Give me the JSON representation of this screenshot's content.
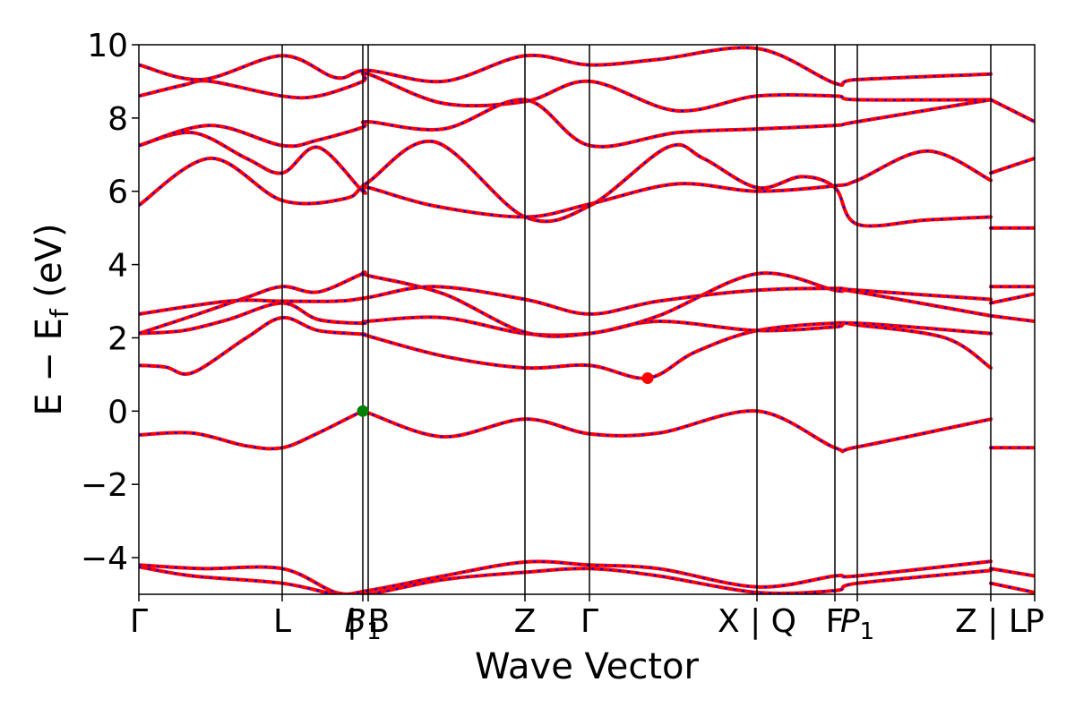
{
  "chart_data": {
    "type": "line",
    "title": "",
    "xlabel": "Wave Vector",
    "ylabel": "E − E_f (eV)",
    "ylabel_main": "E − E",
    "ylabel_sub": "f",
    "ylabel_tail": " (eV)",
    "ylim": [
      -5,
      10
    ],
    "xlim": [
      0,
      10
    ],
    "yticks": [
      -4,
      -2,
      0,
      2,
      4,
      6,
      8,
      10
    ],
    "ytick_labels": [
      "−4",
      "−2",
      "0",
      "2",
      "4",
      "6",
      "8",
      "10"
    ],
    "grid": false,
    "kpoints": [
      {
        "label": "Γ",
        "x": 0
      },
      {
        "label": "L",
        "x": 1.6
      },
      {
        "label": "B",
        "sub": "1",
        "italic": true,
        "x": 2.5
      },
      {
        "label": "B",
        "x": 2.56,
        "sep_before": true
      },
      {
        "label": "Z",
        "x": 4.31
      },
      {
        "label": "Γ",
        "x": 5.03
      },
      {
        "label": "X",
        "x": 6.9
      },
      {
        "label": "Q",
        "x": 6.9,
        "sep_before": true
      },
      {
        "label": "F",
        "x": 7.77
      },
      {
        "label": "P",
        "sub": "1",
        "italic": true,
        "x": 8.02
      },
      {
        "label": "Z",
        "x": 9.51
      },
      {
        "label": "L",
        "x": 9.51,
        "sep_before": true
      },
      {
        "label": "P",
        "x": 10.0
      }
    ],
    "band_styles": {
      "main": "#ff0000",
      "overlay": "#0000ff"
    },
    "markers": [
      {
        "name": "VBM",
        "x": 2.5,
        "y": 0.0,
        "color": "#008000"
      },
      {
        "name": "CBM",
        "x": 5.68,
        "y": 0.9,
        "color": "#ff0000"
      }
    ],
    "series": [
      {
        "x": [
          0,
          0.6,
          1.2,
          1.6,
          2.0,
          2.5,
          2.56,
          3.4,
          4.31,
          5.03,
          5.8,
          6.9,
          7.77,
          8.02,
          9.51
        ],
        "values": [
          -0.65,
          -0.6,
          -0.95,
          -1.0,
          -0.6,
          0.0,
          -0.05,
          -0.7,
          -0.22,
          -0.62,
          -0.6,
          0.0,
          -1.0,
          -0.98,
          -0.22
        ]
      },
      {
        "x": [
          0,
          0.3,
          0.6,
          1.2,
          1.6,
          2.0,
          2.5,
          2.56,
          3.4,
          4.31,
          5.03,
          5.68,
          6.2,
          6.9,
          7.77,
          8.02,
          9.0,
          9.51
        ],
        "values": [
          1.25,
          1.2,
          1.05,
          2.0,
          2.55,
          2.2,
          2.1,
          2.05,
          1.5,
          1.18,
          1.25,
          0.9,
          1.6,
          2.2,
          2.4,
          2.35,
          2.0,
          1.18
        ]
      },
      {
        "x": [
          0,
          0.5,
          1.0,
          1.6,
          2.0,
          2.5,
          2.56,
          3.4,
          4.31,
          5.03,
          5.8,
          6.9,
          7.77,
          8.02,
          9.51
        ],
        "values": [
          2.12,
          2.2,
          2.5,
          2.95,
          2.5,
          2.4,
          2.45,
          2.55,
          2.12,
          2.12,
          2.45,
          2.2,
          2.3,
          2.4,
          2.12
        ]
      },
      {
        "x": [
          0,
          0.6,
          1.2,
          1.6,
          2.0,
          2.5,
          2.56,
          3.4,
          4.31,
          5.03,
          5.8,
          6.9,
          7.77,
          8.02,
          9.51
        ],
        "values": [
          2.12,
          2.6,
          3.1,
          3.4,
          3.25,
          3.75,
          3.7,
          3.2,
          2.15,
          2.12,
          2.6,
          3.75,
          3.3,
          3.25,
          2.6
        ]
      },
      {
        "x": [
          0,
          1.0,
          1.6,
          2.2,
          2.56,
          3.3,
          4.31,
          5.03,
          5.8,
          6.9,
          7.77,
          8.02,
          9.51
        ],
        "values": [
          2.65,
          3.0,
          3.0,
          3.0,
          3.1,
          3.4,
          3.05,
          2.65,
          3.0,
          3.3,
          3.35,
          3.3,
          3.05
        ]
      },
      {
        "x": [
          0,
          0.8,
          1.6,
          2.3,
          2.56,
          3.3,
          4.31,
          5.03,
          5.9,
          6.3,
          6.9,
          7.4,
          7.77,
          8.02,
          8.8,
          9.51
        ],
        "values": [
          5.62,
          6.9,
          5.75,
          5.8,
          6.25,
          7.35,
          5.3,
          5.6,
          7.2,
          6.9,
          6.1,
          6.4,
          6.1,
          5.1,
          5.22,
          5.3
        ]
      },
      {
        "x": [
          0,
          0.6,
          1.2,
          1.6,
          2.0,
          2.5,
          2.56,
          3.3,
          4.31,
          5.03,
          6.0,
          6.9,
          7.77,
          8.02,
          8.8,
          9.51
        ],
        "values": [
          7.25,
          7.6,
          6.9,
          6.5,
          7.2,
          6.0,
          6.1,
          5.6,
          5.3,
          5.65,
          6.2,
          6.0,
          6.15,
          6.3,
          7.1,
          6.3
        ]
      },
      {
        "x": [
          0,
          0.5,
          0.8,
          1.6,
          2.0,
          2.5,
          2.56,
          3.4,
          4.31,
          5.03,
          6.0,
          6.9,
          7.77,
          8.02,
          9.51
        ],
        "values": [
          8.6,
          8.9,
          9.0,
          8.6,
          8.6,
          9.0,
          9.2,
          8.4,
          8.45,
          9.0,
          8.2,
          8.6,
          8.6,
          8.5,
          8.5
        ]
      },
      {
        "x": [
          0,
          0.8,
          1.6,
          2.0,
          2.5,
          2.56,
          3.4,
          4.31,
          5.03,
          6.0,
          6.9,
          7.77,
          8.02,
          9.51
        ],
        "values": [
          7.25,
          7.8,
          7.25,
          7.4,
          7.75,
          7.9,
          7.7,
          8.5,
          7.25,
          7.6,
          7.7,
          7.8,
          7.9,
          8.5
        ]
      },
      {
        "x": [
          0,
          0.7,
          1.6,
          2.2,
          2.56,
          3.4,
          4.31,
          5.03,
          5.8,
          6.9,
          7.77,
          8.02,
          9.51
        ],
        "values": [
          9.45,
          9.05,
          9.7,
          9.1,
          9.3,
          9.0,
          9.7,
          9.45,
          9.6,
          9.9,
          8.95,
          9.05,
          9.2
        ]
      },
      {
        "x": [
          0,
          0.7,
          1.6,
          2.2,
          2.56,
          3.4,
          4.31,
          5.03,
          5.8,
          6.9,
          7.77,
          8.02,
          9.51
        ],
        "values": [
          -4.2,
          -4.3,
          -4.3,
          -4.95,
          -4.9,
          -4.5,
          -4.12,
          -4.2,
          -4.3,
          -4.8,
          -4.5,
          -4.5,
          -4.1
        ]
      },
      {
        "x": [
          0,
          0.6,
          1.6,
          2.2,
          2.56,
          3.4,
          4.31,
          5.03,
          5.8,
          6.9,
          7.77,
          8.02,
          9.51
        ],
        "values": [
          -4.25,
          -4.5,
          -4.7,
          -5.0,
          -5.0,
          -4.6,
          -4.4,
          -4.3,
          -4.5,
          -4.95,
          -4.9,
          -4.7,
          -4.35
        ]
      },
      {
        "x": [
          9.51,
          10.0
        ],
        "values": [
          -1.0,
          -1.0
        ]
      },
      {
        "x": [
          9.51,
          10.0
        ],
        "values": [
          2.95,
          3.2
        ]
      },
      {
        "x": [
          9.51,
          10.0
        ],
        "values": [
          3.4,
          3.4
        ]
      },
      {
        "x": [
          9.51,
          10.0
        ],
        "values": [
          2.6,
          2.45
        ]
      },
      {
        "x": [
          9.51,
          10.0
        ],
        "values": [
          5.0,
          5.0
        ]
      },
      {
        "x": [
          9.51,
          10.0
        ],
        "values": [
          6.5,
          6.9
        ]
      },
      {
        "x": [
          9.51,
          10.0
        ],
        "values": [
          8.5,
          7.9
        ]
      },
      {
        "x": [
          9.51,
          10.0
        ],
        "values": [
          -4.3,
          -4.5
        ]
      },
      {
        "x": [
          9.51,
          10.0
        ],
        "values": [
          -4.7,
          -4.95
        ]
      }
    ]
  }
}
